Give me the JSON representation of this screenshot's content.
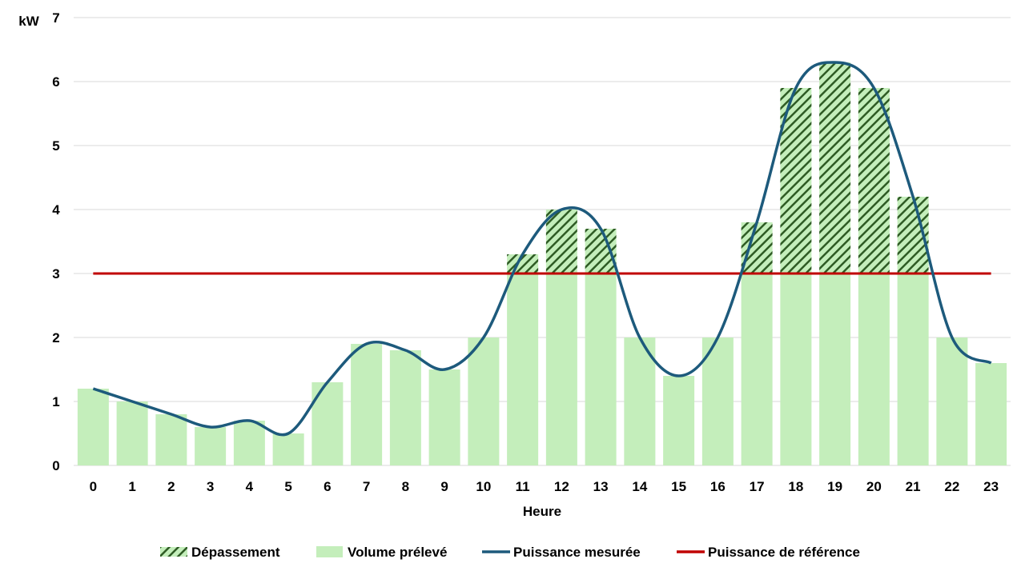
{
  "chart_data": {
    "type": "bar",
    "xlabel": "Heure",
    "ylabel": "kW",
    "ylim": [
      0,
      7
    ],
    "yticks": [
      0,
      1,
      2,
      3,
      4,
      5,
      6,
      7
    ],
    "grid": true,
    "legend_position": "bottom",
    "categories": [
      "0",
      "1",
      "2",
      "3",
      "4",
      "5",
      "6",
      "7",
      "8",
      "9",
      "10",
      "11",
      "12",
      "13",
      "14",
      "15",
      "16",
      "17",
      "18",
      "19",
      "20",
      "21",
      "22",
      "23"
    ],
    "reference": 3,
    "series": [
      {
        "name": "Dépassement",
        "kind": "hatched-bar",
        "color": "#2E5B24",
        "values": [
          0,
          0,
          0,
          0,
          0,
          0,
          0,
          0,
          0,
          0,
          0,
          0.3,
          1.0,
          0.7,
          0,
          0,
          0,
          0.8,
          2.9,
          3.3,
          2.9,
          1.2,
          0,
          0
        ]
      },
      {
        "name": "Volume prélevé",
        "kind": "bar",
        "color": "#C4EEBB",
        "values": [
          1.2,
          1.0,
          0.8,
          0.6,
          0.7,
          0.5,
          1.3,
          1.9,
          1.8,
          1.5,
          2.0,
          3.0,
          3.0,
          3.0,
          2.0,
          1.4,
          2.0,
          3.0,
          3.0,
          3.0,
          3.0,
          3.0,
          2.0,
          1.6
        ]
      },
      {
        "name": "Puissance mesurée",
        "kind": "smooth-line",
        "color": "#1D5A7C",
        "values": [
          1.2,
          1.0,
          0.8,
          0.6,
          0.7,
          0.5,
          1.3,
          1.9,
          1.8,
          1.5,
          2.0,
          3.3,
          4.0,
          3.7,
          2.0,
          1.4,
          2.0,
          3.8,
          5.9,
          6.3,
          5.9,
          4.2,
          2.0,
          1.6
        ]
      },
      {
        "name": "Puissance de référence",
        "kind": "line",
        "color": "#C00000",
        "values": [
          3,
          3,
          3,
          3,
          3,
          3,
          3,
          3,
          3,
          3,
          3,
          3,
          3,
          3,
          3,
          3,
          3,
          3,
          3,
          3,
          3,
          3,
          3,
          3
        ]
      }
    ]
  }
}
